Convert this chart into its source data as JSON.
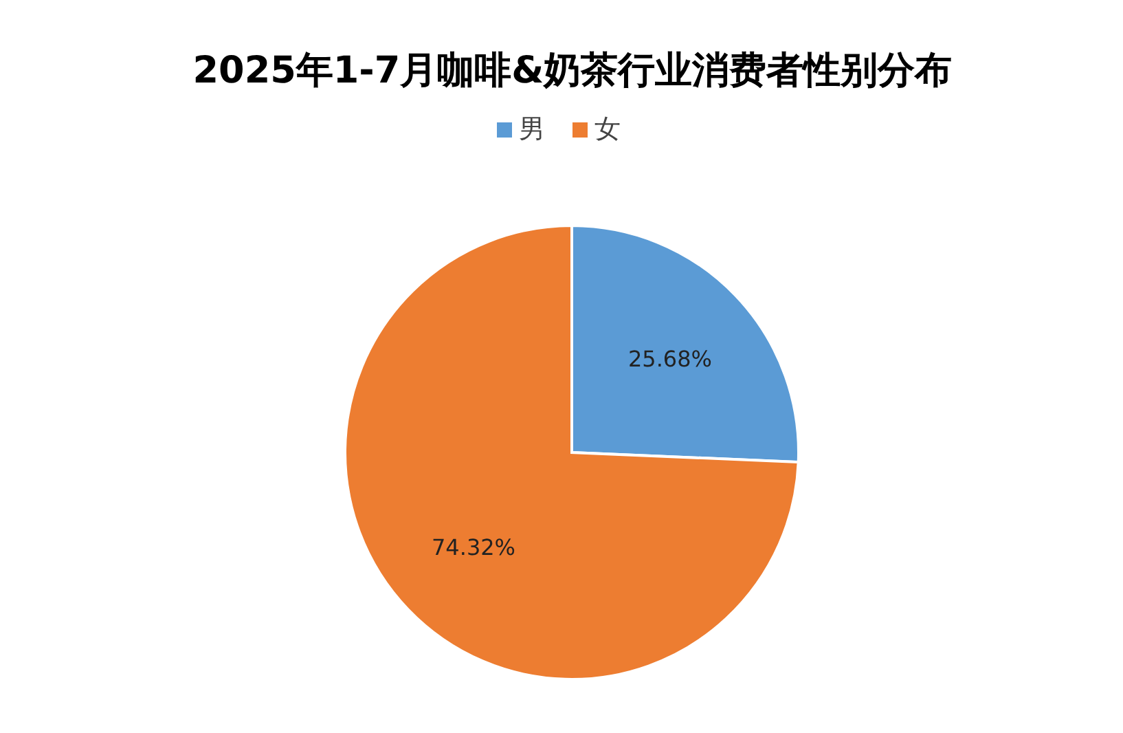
{
  "chart_data": {
    "type": "pie",
    "title": "2025年1-7月咖啡&奶茶行业消费者性别分布",
    "categories": [
      "男",
      "女"
    ],
    "values": [
      25.68,
      74.32
    ],
    "colors": [
      "#5b9bd5",
      "#ed7d31"
    ],
    "value_labels": [
      "25.68%",
      "74.32%"
    ],
    "legend": "top"
  }
}
